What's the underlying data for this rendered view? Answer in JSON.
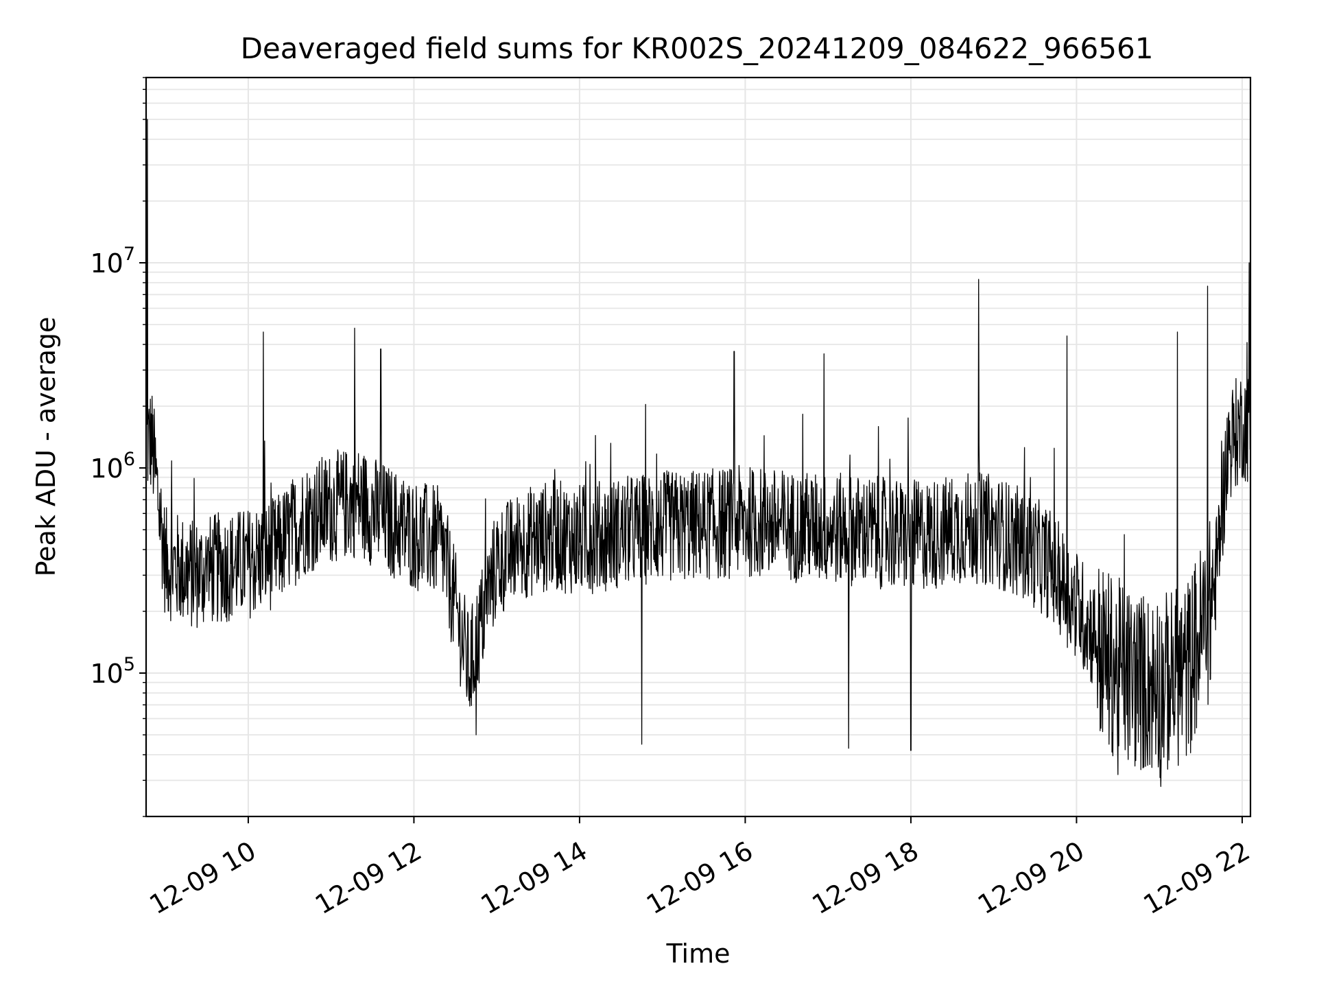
{
  "chart_data": {
    "type": "line",
    "title": "Deaveraged field sums for KR002S_20241209_084622_966561",
    "xlabel": "Time",
    "ylabel": "Peak ADU - average",
    "x_range": [
      "2024-12-09 08:46",
      "2024-12-09 22:06"
    ],
    "y_scale": "log",
    "ylim": [
      20000,
      80000000
    ],
    "grid": true,
    "x_ticks": [
      {
        "value": "2024-12-09 10:00",
        "label": "12-09 10"
      },
      {
        "value": "2024-12-09 12:00",
        "label": "12-09 12"
      },
      {
        "value": "2024-12-09 14:00",
        "label": "12-09 14"
      },
      {
        "value": "2024-12-09 16:00",
        "label": "12-09 16"
      },
      {
        "value": "2024-12-09 18:00",
        "label": "12-09 18"
      },
      {
        "value": "2024-12-09 20:00",
        "label": "12-09 20"
      },
      {
        "value": "2024-12-09 22:00",
        "label": "12-09 22"
      }
    ],
    "y_ticks": [
      {
        "value": 100000,
        "base": "10",
        "exp": "5"
      },
      {
        "value": 1000000,
        "base": "10",
        "exp": "6"
      },
      {
        "value": 10000000,
        "base": "10",
        "exp": "7"
      }
    ],
    "line_color": "#000000",
    "grid_color": "#e6e6e6",
    "series": [
      {
        "x": [
          "2024-12-09 08:46",
          "2024-12-09 08:50",
          "2024-12-09 09:00",
          "2024-12-09 09:20",
          "2024-12-09 09:40",
          "2024-12-09 10:00",
          "2024-12-09 10:20",
          "2024-12-09 10:40",
          "2024-12-09 11:00",
          "2024-12-09 11:20",
          "2024-12-09 11:40",
          "2024-12-09 12:00",
          "2024-12-09 12:20",
          "2024-12-09 12:40",
          "2024-12-09 13:00",
          "2024-12-09 13:20",
          "2024-12-09 13:40",
          "2024-12-09 14:00",
          "2024-12-09 14:20",
          "2024-12-09 14:40",
          "2024-12-09 15:00",
          "2024-12-09 15:20",
          "2024-12-09 15:40",
          "2024-12-09 16:00",
          "2024-12-09 16:20",
          "2024-12-09 16:40",
          "2024-12-09 17:00",
          "2024-12-09 17:20",
          "2024-12-09 17:40",
          "2024-12-09 18:00",
          "2024-12-09 18:20",
          "2024-12-09 18:40",
          "2024-12-09 19:00",
          "2024-12-09 19:20",
          "2024-12-09 19:40",
          "2024-12-09 20:00",
          "2024-12-09 20:20",
          "2024-12-09 20:40",
          "2024-12-09 21:00",
          "2024-12-09 21:20",
          "2024-12-09 21:40",
          "2024-12-09 21:50",
          "2024-12-09 22:00",
          "2024-12-09 22:06"
        ],
        "y": [
          1500000,
          1600000,
          400000,
          350000,
          380000,
          400000,
          450000,
          650000,
          750000,
          800000,
          650000,
          550000,
          500000,
          120000,
          400000,
          500000,
          550000,
          520000,
          550000,
          580000,
          600000,
          610000,
          620000,
          640000,
          620000,
          600000,
          590000,
          580000,
          560000,
          540000,
          560000,
          600000,
          580000,
          500000,
          400000,
          250000,
          150000,
          120000,
          110000,
          130000,
          300000,
          1500000,
          1900000,
          1800000
        ],
        "peaks": [
          {
            "x": "2024-12-09 08:47",
            "y": 50000000
          },
          {
            "x": "2024-12-09 10:11",
            "y": 4600000
          },
          {
            "x": "2024-12-09 11:17",
            "y": 4800000
          },
          {
            "x": "2024-12-09 11:36",
            "y": 3800000
          },
          {
            "x": "2024-12-09 15:52",
            "y": 3700000
          },
          {
            "x": "2024-12-09 16:57",
            "y": 3600000
          },
          {
            "x": "2024-12-09 18:49",
            "y": 8300000
          },
          {
            "x": "2024-12-09 19:53",
            "y": 4400000
          },
          {
            "x": "2024-12-09 21:13",
            "y": 4600000
          },
          {
            "x": "2024-12-09 21:35",
            "y": 7700000
          },
          {
            "x": "2024-12-09 22:05",
            "y": 10000000
          }
        ],
        "troughs": [
          {
            "x": "2024-12-09 12:45",
            "y": 50000
          },
          {
            "x": "2024-12-09 14:45",
            "y": 45000
          },
          {
            "x": "2024-12-09 17:15",
            "y": 43000
          },
          {
            "x": "2024-12-09 18:00",
            "y": 42000
          },
          {
            "x": "2024-12-09 20:30",
            "y": 32000
          },
          {
            "x": "2024-12-09 21:01",
            "y": 28000
          }
        ]
      }
    ]
  }
}
